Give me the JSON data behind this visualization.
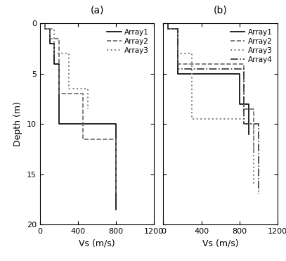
{
  "panel_a": {
    "title": "(a)",
    "arrays": [
      {
        "name": "Array1",
        "style": "-",
        "color": "#000000",
        "linewidth": 1.2,
        "vs": [
          50,
          50,
          100,
          100,
          150,
          150,
          200,
          200,
          800,
          800
        ],
        "depth": [
          0,
          0.5,
          0.5,
          2,
          2,
          4,
          4,
          10,
          10,
          18.5
        ]
      },
      {
        "name": "Array2",
        "style": "--",
        "color": "#666666",
        "linewidth": 1.2,
        "vs": [
          50,
          50,
          100,
          100,
          200,
          200,
          450,
          450,
          800,
          800
        ],
        "depth": [
          0,
          0.5,
          0.5,
          1.5,
          1.5,
          7,
          7,
          11.5,
          11.5,
          17
        ]
      },
      {
        "name": "Array3",
        "style": ":",
        "color": "#888888",
        "linewidth": 1.5,
        "vs": [
          50,
          50,
          150,
          150,
          300,
          300,
          500,
          500
        ],
        "depth": [
          0,
          0.5,
          0.5,
          3,
          3,
          6.5,
          6.5,
          8.5
        ]
      }
    ]
  },
  "panel_b": {
    "title": "(b)",
    "arrays": [
      {
        "name": "Array1",
        "style": "-",
        "color": "#000000",
        "linewidth": 1.2,
        "vs": [
          50,
          50,
          150,
          150,
          800,
          800,
          900,
          900
        ],
        "depth": [
          0,
          0.5,
          0.5,
          5,
          5,
          8,
          8,
          11
        ]
      },
      {
        "name": "Array2",
        "style": "--",
        "color": "#666666",
        "linewidth": 1.2,
        "vs": [
          50,
          50,
          150,
          150,
          850,
          850,
          950,
          950
        ],
        "depth": [
          0,
          0.5,
          0.5,
          4,
          4,
          8.5,
          8.5,
          13
        ]
      },
      {
        "name": "Array3",
        "style": ":",
        "color": "#888888",
        "linewidth": 1.5,
        "vs": [
          50,
          50,
          150,
          150,
          300,
          300,
          850,
          850,
          950,
          950
        ],
        "depth": [
          0,
          0.5,
          0.5,
          3,
          3,
          9.5,
          9.5,
          10,
          10,
          16
        ]
      },
      {
        "name": "Array4",
        "style": "-.",
        "color": "#333333",
        "linewidth": 1.2,
        "vs": [
          50,
          50,
          150,
          150,
          850,
          850,
          1000,
          1000
        ],
        "depth": [
          0,
          0.5,
          0.5,
          4.5,
          4.5,
          10,
          10,
          17
        ]
      }
    ]
  },
  "xlim": [
    0,
    1200
  ],
  "ylim": [
    20,
    0
  ],
  "xticks": [
    0,
    400,
    800,
    1200
  ],
  "yticks": [
    0,
    5,
    10,
    15,
    20
  ],
  "xlabel": "Vs (m/s)",
  "ylabel": "Depth (m)",
  "bg_color": "#ffffff",
  "legend_fontsize": 7.5,
  "tick_labelsize": 8,
  "axis_labelsize": 9,
  "title_fontsize": 10
}
